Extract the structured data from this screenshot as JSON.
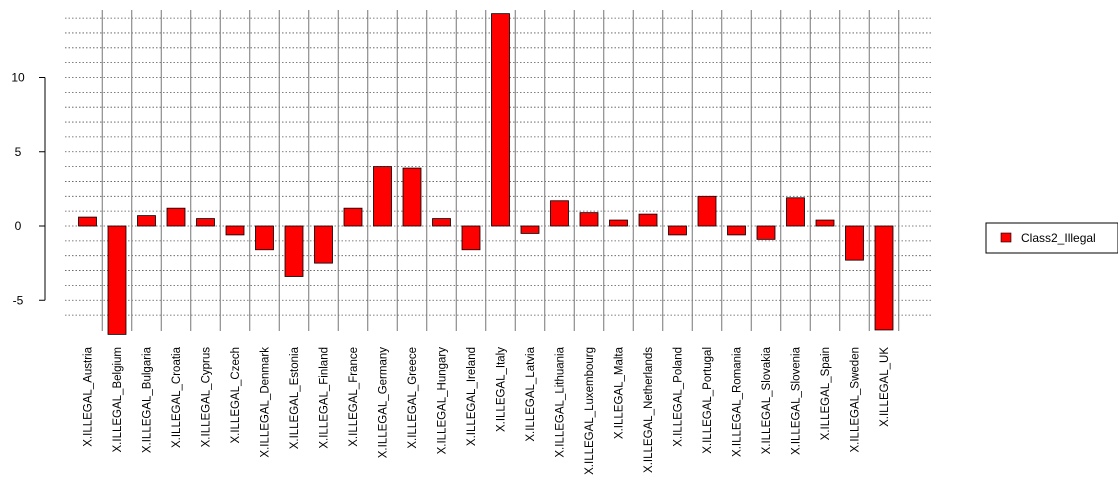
{
  "chart_data": {
    "type": "bar",
    "categories": [
      "X.ILLEGAL_Austria",
      "X.ILLEGAL_Belgium",
      "X.ILLEGAL_Bulgaria",
      "X.ILLEGAL_Croatia",
      "X.ILLEGAL_Cyprus",
      "X.ILLEGAL_Czech",
      "X.ILLEGAL_Denmark",
      "X.ILLEGAL_Estonia",
      "X.ILLEGAL_Finland",
      "X.ILLEGAL_France",
      "X.ILLEGAL_Germany",
      "X.ILLEGAL_Greece",
      "X.ILLEGAL_Hungary",
      "X.ILLEGAL_Ireland",
      "X.ILLEGAL_Italy",
      "X.ILLEGAL_Latvia",
      "X.ILLEGAL_Lithuania",
      "X.ILLEGAL_Luxembourg",
      "X.ILLEGAL_Malta",
      "X.ILLEGAL_Netherlands",
      "X.ILLEGAL_Poland",
      "X.ILLEGAL_Portugal",
      "X.ILLEGAL_Romania",
      "X.ILLEGAL_Slovakia",
      "X.ILLEGAL_Slovenia",
      "X.ILLEGAL_Spain",
      "X.ILLEGAL_Sweden",
      "X.ILLEGAL_UK"
    ],
    "series": [
      {
        "name": "Class2_Illegal",
        "color": "#ff0000",
        "values": [
          0.6,
          -7.3,
          0.7,
          1.2,
          0.5,
          -0.6,
          -1.6,
          -3.4,
          -2.5,
          1.2,
          4.0,
          3.9,
          0.5,
          -1.6,
          14.3,
          -0.5,
          1.7,
          0.9,
          0.4,
          0.8,
          -0.6,
          2.0,
          -0.6,
          -0.9,
          1.9,
          0.4,
          -2.3,
          -7.0
        ]
      }
    ],
    "yticks": [
      -5,
      0,
      5,
      10
    ],
    "ylim": [
      -7.3,
      14.3
    ],
    "grid": true,
    "legend": "right",
    "title": "",
    "xlabel": "",
    "ylabel": ""
  }
}
